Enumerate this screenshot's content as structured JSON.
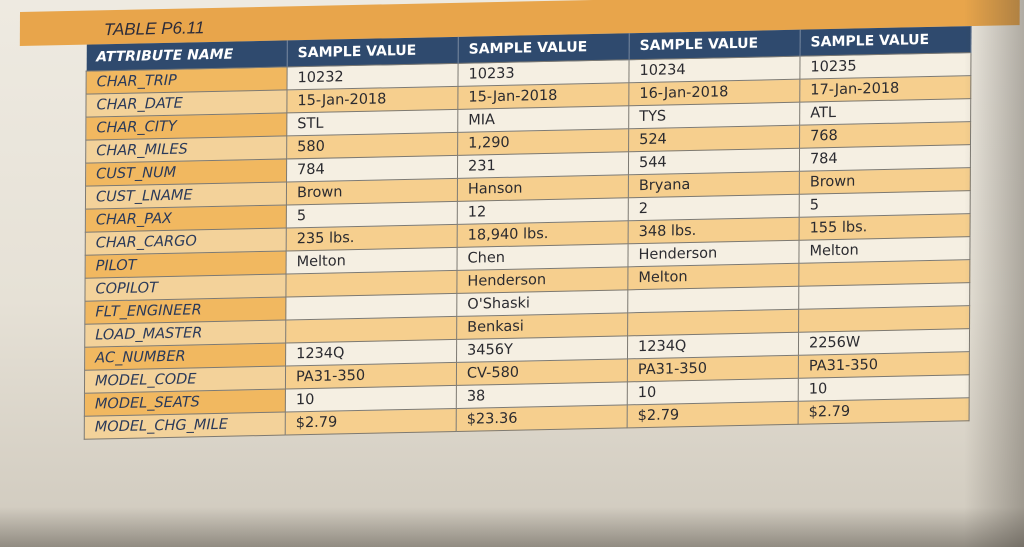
{
  "table": {
    "title": "TABLE P6.11",
    "headers": [
      "ATTRIBUTE NAME",
      "SAMPLE VALUE",
      "SAMPLE VALUE",
      "SAMPLE VALUE",
      "SAMPLE VALUE"
    ],
    "rows": [
      {
        "attr": "CHAR_TRIP",
        "v1": "10232",
        "v2": "10233",
        "v3": "10234",
        "v4": "10235"
      },
      {
        "attr": "CHAR_DATE",
        "v1": "15-Jan-2018",
        "v2": "15-Jan-2018",
        "v3": "16-Jan-2018",
        "v4": "17-Jan-2018"
      },
      {
        "attr": "CHAR_CITY",
        "v1": "STL",
        "v2": "MIA",
        "v3": "TYS",
        "v4": "ATL"
      },
      {
        "attr": "CHAR_MILES",
        "v1": "580",
        "v2": "1,290",
        "v3": "524",
        "v4": "768"
      },
      {
        "attr": "CUST_NUM",
        "v1": "784",
        "v2": "231",
        "v3": "544",
        "v4": "784"
      },
      {
        "attr": "CUST_LNAME",
        "v1": "Brown",
        "v2": "Hanson",
        "v3": "Bryana",
        "v4": "Brown"
      },
      {
        "attr": "CHAR_PAX",
        "v1": "5",
        "v2": "12",
        "v3": "2",
        "v4": "5"
      },
      {
        "attr": "CHAR_CARGO",
        "v1": "235 lbs.",
        "v2": "18,940 lbs.",
        "v3": "348 lbs.",
        "v4": "155 lbs."
      },
      {
        "attr": "PILOT",
        "v1": "Melton",
        "v2": "Chen",
        "v3": "Henderson",
        "v4": "Melton"
      },
      {
        "attr": "COPILOT",
        "v1": "",
        "v2": "Henderson",
        "v3": "Melton",
        "v4": ""
      },
      {
        "attr": "FLT_ENGINEER",
        "v1": "",
        "v2": "O'Shaski",
        "v3": "",
        "v4": ""
      },
      {
        "attr": "LOAD_MASTER",
        "v1": "",
        "v2": "Benkasi",
        "v3": "",
        "v4": ""
      },
      {
        "attr": "AC_NUMBER",
        "v1": "1234Q",
        "v2": "3456Y",
        "v3": "1234Q",
        "v4": "2256W"
      },
      {
        "attr": "MODEL_CODE",
        "v1": "PA31-350",
        "v2": "CV-580",
        "v3": "PA31-350",
        "v4": "PA31-350"
      },
      {
        "attr": "MODEL_SEATS",
        "v1": "10",
        "v2": "38",
        "v3": "10",
        "v4": "10"
      },
      {
        "attr": "MODEL_CHG_MILE",
        "v1": "$2.79",
        "v2": "$23.36",
        "v3": "$2.79",
        "v4": "$2.79"
      }
    ]
  }
}
